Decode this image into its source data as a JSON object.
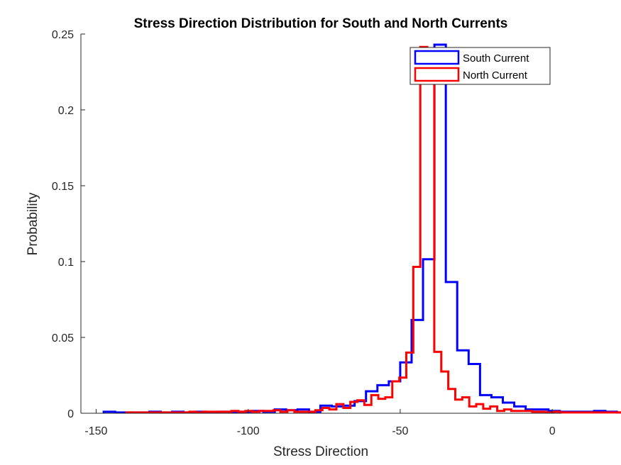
{
  "chart_data": {
    "type": "histogram",
    "title": "Stress Direction Distribution for South and North Currents",
    "xlabel": "Stress Direction",
    "ylabel": "Probability",
    "xlim": [
      -155,
      3
    ],
    "ylim": [
      0,
      0.25
    ],
    "xticks": [
      -150,
      -100,
      -50,
      0
    ],
    "xtick_labels": [
      "-150",
      "-100",
      "-50",
      "0"
    ],
    "yticks": [
      0,
      0.05,
      0.1,
      0.15,
      0.2,
      0.25
    ],
    "ytick_labels": [
      "0",
      "0.05",
      "0.1",
      "0.15",
      "0.2",
      "0.25"
    ],
    "grid": false,
    "legend_position": "top-right",
    "series": [
      {
        "name": "South Current",
        "color": "#0000ff",
        "bin_width": 3.75,
        "bin_edges_start": -147.5,
        "values": [
          0.001,
          0.0005,
          0.0005,
          0.0005,
          0.001,
          0.0005,
          0.001,
          0.0005,
          0.001,
          0.0005,
          0.001,
          0.0005,
          0.001,
          0.0015,
          0.001,
          0.0025,
          0.002,
          0.0025,
          0.001,
          0.005,
          0.0045,
          0.005,
          0.008,
          0.0145,
          0.0185,
          0.021,
          0.0335,
          0.0615,
          0.1015,
          0.243,
          0.0865,
          0.0415,
          0.0325,
          0.012,
          0.0105,
          0.007,
          0.0045,
          0.0025,
          0.0025,
          0.0015,
          0.001,
          0.001,
          0.001,
          0.0015,
          0.001,
          0.0005,
          0.001,
          0.0005,
          0.0005
        ]
      },
      {
        "name": "North Current",
        "color": "#ff0000",
        "bin_width": 2.3,
        "bin_edges_start": -140.0,
        "values": [
          0.0005,
          0.0005,
          0.0005,
          0.0005,
          0.0005,
          0.0005,
          0.0005,
          0.0005,
          0.0005,
          0.001,
          0.0005,
          0.001,
          0.001,
          0.001,
          0.001,
          0.0015,
          0.001,
          0.0015,
          0.001,
          0.0015,
          0.0015,
          0.002,
          0.001,
          0.002,
          0.001,
          0.001,
          0.001,
          0.002,
          0.0035,
          0.0025,
          0.006,
          0.0035,
          0.0075,
          0.0085,
          0.0055,
          0.012,
          0.0095,
          0.0105,
          0.021,
          0.0235,
          0.04,
          0.0965,
          0.2415,
          0.2215,
          0.0405,
          0.0275,
          0.016,
          0.009,
          0.0105,
          0.0045,
          0.006,
          0.003,
          0.0045,
          0.0015,
          0.0025,
          0.0015,
          0.0015,
          0.0015,
          0.001,
          0.001,
          0.0005,
          0.001,
          0.0005,
          0.0005,
          0.0005,
          0.0005,
          0.0005,
          0.0005,
          0.0005,
          0.0005,
          0.0005,
          0.0005,
          0.0005,
          0.0005,
          0.0005,
          0.0005
        ]
      }
    ]
  }
}
